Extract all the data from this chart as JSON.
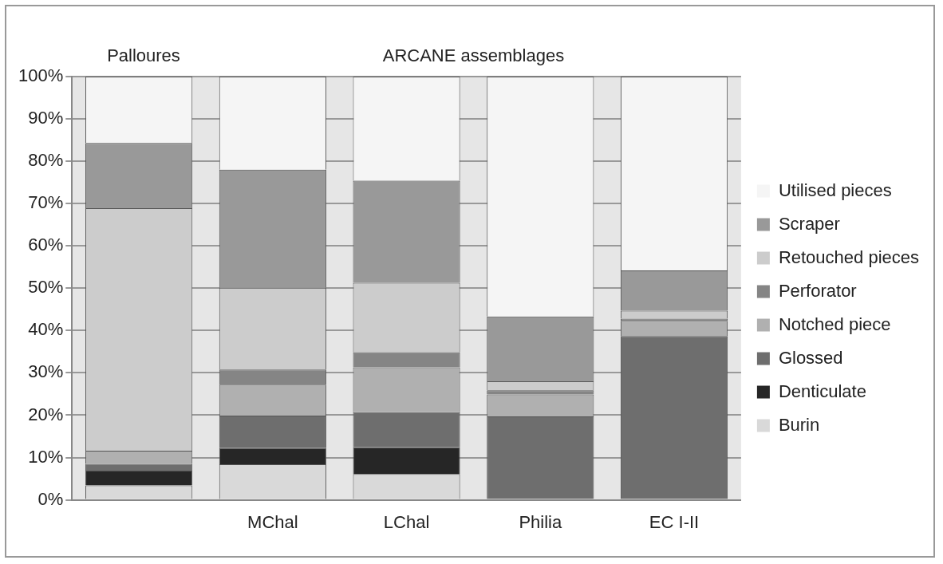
{
  "chart_data": {
    "type": "bar",
    "stacked": true,
    "categories": [
      null,
      "MChal",
      "LChal",
      "Philia",
      "EC I-II"
    ],
    "series": [
      {
        "name": "Burin",
        "color": "#d9d9d9",
        "values": [
          3.4,
          8.4,
          6.1,
          0,
          0
        ]
      },
      {
        "name": "Denticulate",
        "color": "#262626",
        "values": [
          3.5,
          3.8,
          6.3,
          0,
          0
        ]
      },
      {
        "name": "Glossed",
        "color": "#6e6e6e",
        "values": [
          1.6,
          7.7,
          8.3,
          19.7,
          38.7
        ]
      },
      {
        "name": "Notched piece",
        "color": "#b0b0b0",
        "values": [
          3.1,
          7.3,
          10.6,
          5.2,
          3.6
        ]
      },
      {
        "name": "Perforator",
        "color": "#858585",
        "values": [
          0,
          3.6,
          3.6,
          1.0,
          0.5
        ]
      },
      {
        "name": "Retouched pieces",
        "color": "#cccccc",
        "values": [
          57.3,
          19.3,
          16.4,
          2.1,
          1.9
        ]
      },
      {
        "name": "Scraper",
        "color": "#999999",
        "values": [
          15.4,
          27.9,
          24.1,
          15.3,
          9.5
        ]
      },
      {
        "name": "Utilised pieces",
        "color": "#f5f5f5",
        "values": [
          15.7,
          22.0,
          24.6,
          56.7,
          45.8
        ]
      }
    ],
    "ylim": [
      0,
      100
    ],
    "yticks": [
      {
        "value": 0,
        "label": "0%"
      },
      {
        "value": 10,
        "label": "10%"
      },
      {
        "value": 20,
        "label": "20%"
      },
      {
        "value": 30,
        "label": "30%"
      },
      {
        "value": 40,
        "label": "40%"
      },
      {
        "value": 50,
        "label": "50%"
      },
      {
        "value": 60,
        "label": "60%"
      },
      {
        "value": 70,
        "label": "70%"
      },
      {
        "value": 80,
        "label": "80%"
      },
      {
        "value": 90,
        "label": "90%"
      },
      {
        "value": 100,
        "label": "100%"
      }
    ],
    "grid": "y",
    "legend": "right",
    "annotations": [
      "Palloures",
      "ARCANE assemblages"
    ]
  }
}
